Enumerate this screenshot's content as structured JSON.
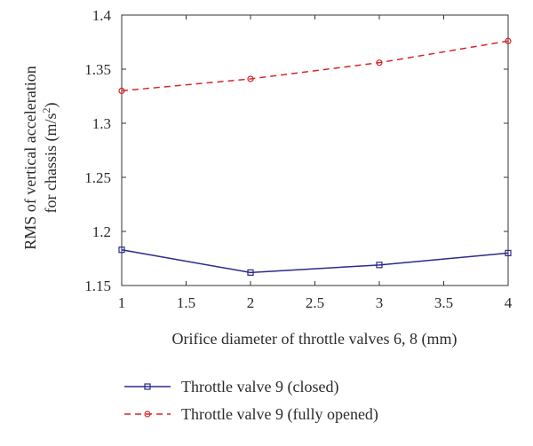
{
  "chart_data": {
    "type": "line",
    "x": [
      1,
      2,
      3,
      4
    ],
    "xlabel": "Orifice diameter of throttle valves 6, 8 (mm)",
    "ylabel_line1": "RMS of vertical acceleration",
    "ylabel_line2_prefix": "for chassis (m/s",
    "ylabel_line2_sup": "2",
    "ylabel_line2_suffix": ")",
    "xlim": [
      1,
      4
    ],
    "ylim": [
      1.15,
      1.4
    ],
    "xticks": [
      1,
      1.5,
      2,
      2.5,
      3,
      3.5,
      4
    ],
    "xtick_labels": [
      "1",
      "1.5",
      "2",
      "2.5",
      "3",
      "3.5",
      "4"
    ],
    "yticks": [
      1.15,
      1.2,
      1.25,
      1.3,
      1.35,
      1.4
    ],
    "ytick_labels": [
      "1.15",
      "1.2",
      "1.25",
      "1.3",
      "1.35",
      "1.4"
    ],
    "grid": false,
    "legend_position": "bottom",
    "series": [
      {
        "name": "Throttle valve 9 (closed)",
        "values": [
          1.183,
          1.162,
          1.169,
          1.18
        ],
        "color": "#2a2a8c",
        "line_style": "solid",
        "marker": "square"
      },
      {
        "name": "Throttle valve 9 (fully opened)",
        "values": [
          1.33,
          1.341,
          1.356,
          1.376
        ],
        "color": "#d62728",
        "line_style": "dashed",
        "marker": "circle"
      }
    ]
  }
}
